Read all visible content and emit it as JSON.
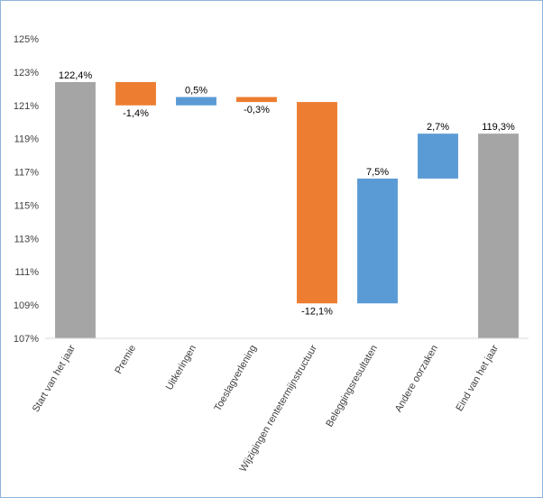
{
  "chart_data": {
    "type": "bar",
    "subtype": "waterfall",
    "title": "",
    "xlabel": "",
    "ylabel": "",
    "ylim": [
      107,
      125
    ],
    "ytick_step": 2,
    "ytick_suffix": "%",
    "grid": false,
    "legend": "none",
    "categories": [
      "Start van het jaar",
      "Premie",
      "Uitkeringen",
      "Toeslagverlening",
      "Wijzigingen rentetermijnstructuur",
      "Beleggingsresultaten",
      "Andere oorzaken",
      "Eind van het jaar"
    ],
    "values": [
      122.4,
      -1.4,
      0.5,
      -0.3,
      -12.1,
      7.5,
      2.7,
      119.3
    ],
    "kinds": [
      "total",
      "delta",
      "delta",
      "delta",
      "delta",
      "delta",
      "delta",
      "total"
    ],
    "data_labels": [
      "122,4%",
      "-1,4%",
      "0,5%",
      "-0,3%",
      "-12,1%",
      "7,5%",
      "2,7%",
      "119,3%"
    ],
    "colors": {
      "total": "#a5a5a5",
      "increase": "#5b9bd5",
      "decrease": "#ed7d31",
      "axis": "#d9d9d9",
      "frame": "#8fb4d9"
    }
  }
}
